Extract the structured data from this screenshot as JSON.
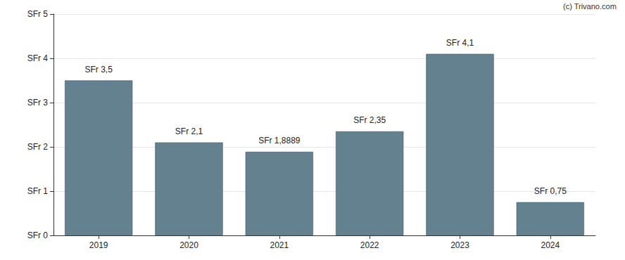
{
  "chart_data": {
    "type": "bar",
    "annotation": "(c) Trivano.com",
    "categories": [
      "2019",
      "2020",
      "2021",
      "2022",
      "2023",
      "2024"
    ],
    "values": [
      3.5,
      2.1,
      1.8889,
      2.35,
      4.1,
      0.75
    ],
    "value_labels": [
      "SFr 3,5",
      "SFr 2,1",
      "SFr 1,8889",
      "SFr 2,35",
      "SFr 4,1",
      "SFr 0,75"
    ],
    "color": "#64818f",
    "ylim": [
      0,
      5
    ],
    "yticks": [
      {
        "value": 0,
        "label": "SFr 0"
      },
      {
        "value": 1,
        "label": "SFr 1"
      },
      {
        "value": 2,
        "label": "SFr 2"
      },
      {
        "value": 3,
        "label": "SFr 3"
      },
      {
        "value": 4,
        "label": "SFr 4"
      },
      {
        "value": 5,
        "label": "SFr 5"
      }
    ],
    "grid": true,
    "data_labels": true
  }
}
